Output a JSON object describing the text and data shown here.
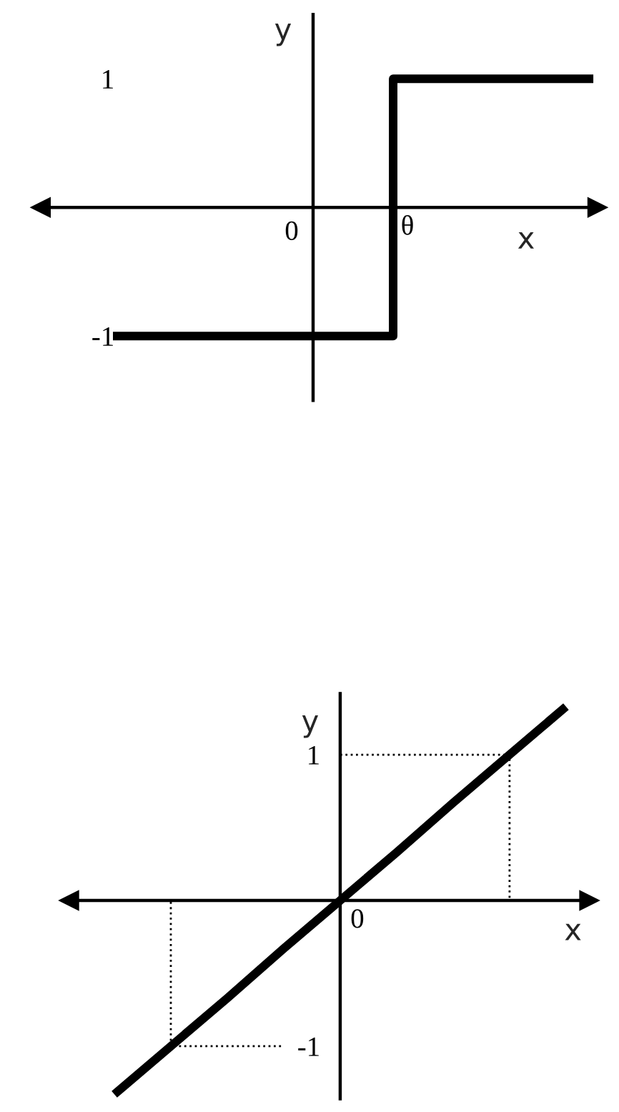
{
  "chart_data": [
    {
      "type": "step",
      "xlabel": "x",
      "ylabel": "y",
      "ylim": [
        -1.5,
        1.5
      ],
      "yticks": [
        -1,
        1
      ],
      "annotations": [
        "0"
      ],
      "categories": [
        null,
        null,
        null,
        null,
        null,
        null,
        null,
        "θ",
        null,
        null,
        null,
        null,
        null
      ],
      "series": [
        {
          "color": "#000000",
          "values": [
            -1,
            -1,
            -1,
            -1,
            -1,
            -1,
            -1,
            1,
            1,
            1,
            1,
            1,
            1
          ]
        }
      ]
    },
    {
      "type": "line",
      "xlabel": "x",
      "ylabel": "y",
      "ylim": [
        -1.36,
        1.42
      ],
      "yticks": [
        -1,
        1
      ],
      "categories": [
        null,
        null,
        null,
        null,
        "0",
        null,
        null,
        null,
        null
      ],
      "series": [
        {
          "color": "#000000",
          "values": [
            -1.33,
            -1,
            -0.67,
            -0.33,
            0,
            0.33,
            0.67,
            1,
            1.33
          ]
        },
        {
          "type": "step",
          "color": "#000000",
          "line_style": "dotted",
          "values": [
            null,
            null,
            null,
            null,
            1,
            1,
            1,
            0,
            null
          ]
        },
        {
          "type": "step",
          "color": "#000000",
          "line_style": "dotted",
          "values": [
            0,
            -1,
            -1,
            -1,
            null,
            null,
            null,
            null,
            null
          ]
        }
      ]
    }
  ]
}
